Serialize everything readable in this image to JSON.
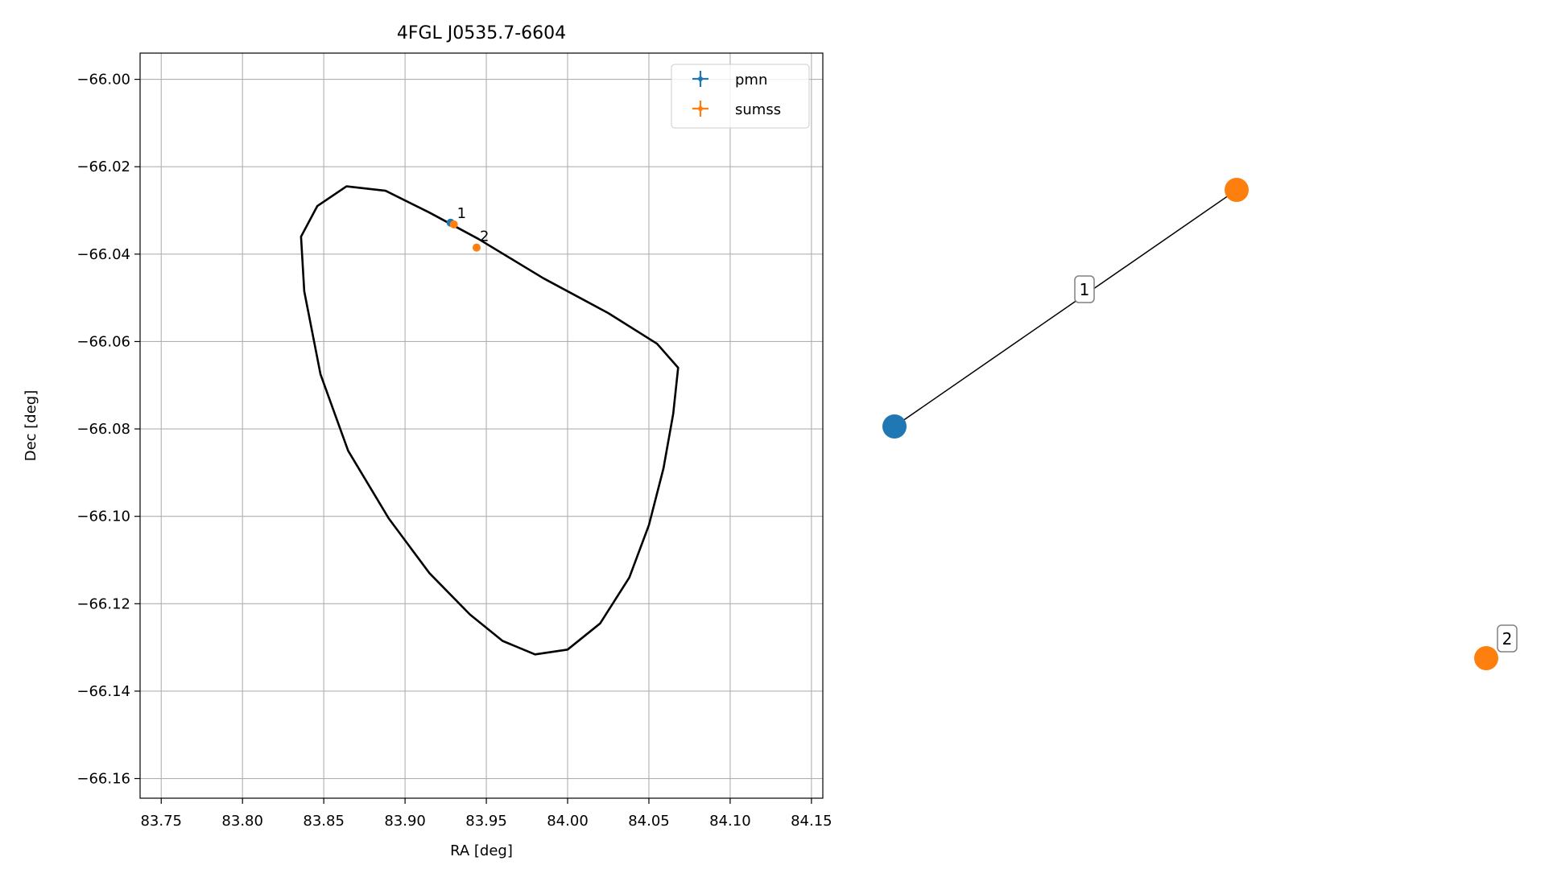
{
  "chart_data": [
    {
      "type": "scatter",
      "title": "4FGL J0535.7-6604",
      "xlabel": "RA [deg]",
      "ylabel": "Dec [deg]",
      "xlim": [
        83.737,
        84.157
      ],
      "ylim": [
        -66.1645,
        -65.994
      ],
      "xticks": [
        83.75,
        83.8,
        83.85,
        83.9,
        83.95,
        84.0,
        84.05,
        84.1,
        84.15
      ],
      "xtick_labels": [
        "83.75",
        "83.80",
        "83.85",
        "83.90",
        "83.95",
        "84.00",
        "84.05",
        "84.10",
        "84.15"
      ],
      "yticks": [
        -66.0,
        -66.02,
        -66.04,
        -66.06,
        -66.08,
        -66.1,
        -66.12,
        -66.14,
        -66.16
      ],
      "ytick_labels": [
        "−66.00",
        "−66.02",
        "−66.04",
        "−66.06",
        "−66.08",
        "−66.10",
        "−66.12",
        "−66.14",
        "−66.16"
      ],
      "grid": true,
      "legend_position": "top-right",
      "series": [
        {
          "name": "pmn",
          "color": "#1f77b4",
          "points": [
            {
              "x": 83.928,
              "y": -66.0328
            }
          ]
        },
        {
          "name": "sumss",
          "color": "#ff7f0e",
          "points": [
            {
              "x": 83.93,
              "y": -66.0332
            },
            {
              "x": 83.944,
              "y": -66.0385
            }
          ]
        }
      ],
      "point_labels": [
        {
          "text": "1",
          "x": 83.93,
          "y": -66.0332
        },
        {
          "text": "2",
          "x": 83.944,
          "y": -66.0385
        }
      ],
      "ellipse": {
        "center": {
          "x": 83.9475,
          "y": -66.0792
        },
        "color": "#000000",
        "points": [
          [
            84.068,
            -66.066
          ],
          [
            84.065,
            -66.0765
          ],
          [
            84.059,
            -66.089
          ],
          [
            84.05,
            -66.102
          ],
          [
            84.038,
            -66.114
          ],
          [
            84.02,
            -66.1245
          ],
          [
            84.0,
            -66.1305
          ],
          [
            83.98,
            -66.1316
          ],
          [
            83.96,
            -66.1285
          ],
          [
            83.94,
            -66.1225
          ],
          [
            83.915,
            -66.113
          ],
          [
            83.89,
            -66.1005
          ],
          [
            83.865,
            -66.085
          ],
          [
            83.848,
            -66.0675
          ],
          [
            83.838,
            -66.0485
          ],
          [
            83.836,
            -66.036
          ],
          [
            83.846,
            -66.029
          ],
          [
            83.864,
            -66.0245
          ],
          [
            83.888,
            -66.0255
          ],
          [
            83.915,
            -66.0305
          ],
          [
            83.945,
            -66.0365
          ],
          [
            83.985,
            -66.0455
          ],
          [
            84.025,
            -66.0535
          ],
          [
            84.055,
            -66.0605
          ]
        ]
      }
    },
    {
      "type": "network",
      "nodes": [
        {
          "id": "pmn",
          "color": "#1f77b4"
        },
        {
          "id": "sumss-1",
          "color": "#ff7f0e"
        },
        {
          "id": "sumss-2",
          "color": "#ff7f0e"
        }
      ],
      "edges": [
        {
          "from": "pmn",
          "to": "sumss-1",
          "label": "1"
        }
      ],
      "node_labels": [
        {
          "node": "sumss-2",
          "label": "2"
        }
      ]
    }
  ]
}
